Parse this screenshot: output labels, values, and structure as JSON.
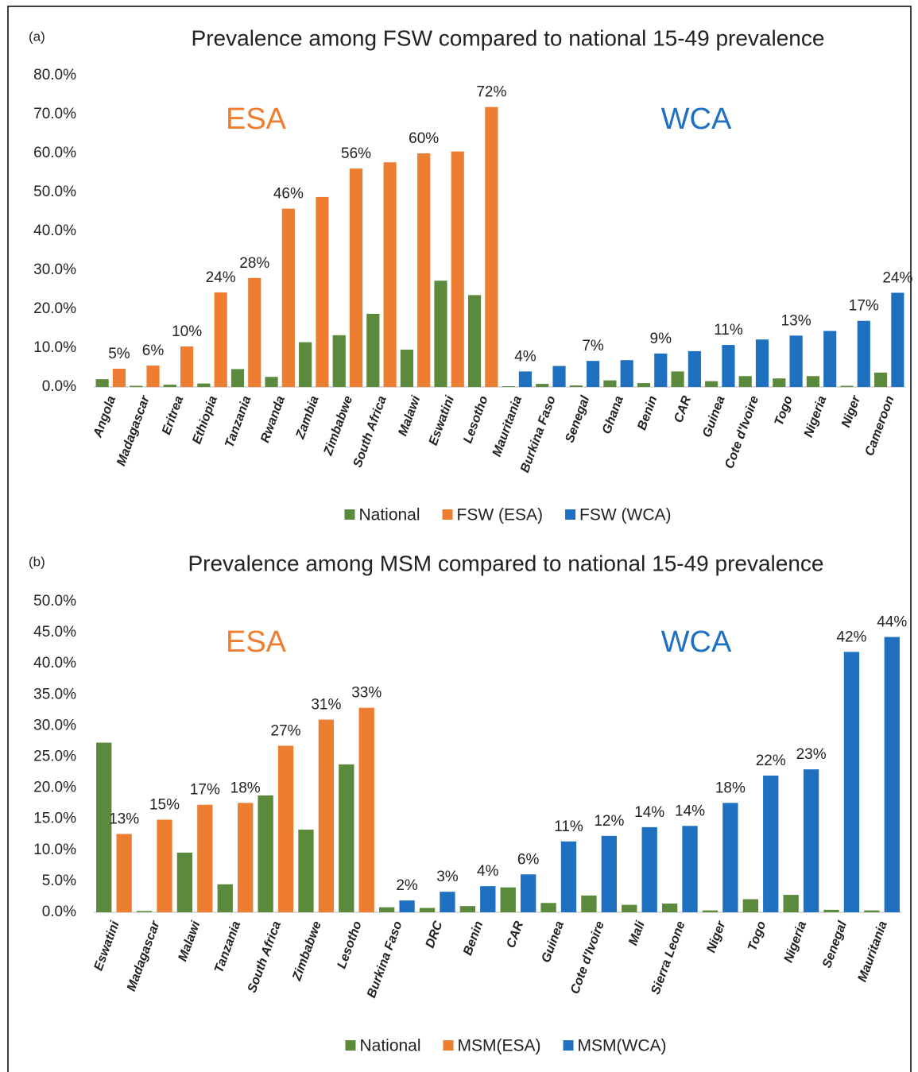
{
  "chart_data": [
    {
      "type": "bar",
      "panel_label": "(a)",
      "title": "Prevalence among FSW compared to national 15-49 prevalence",
      "annotations": [
        {
          "text": "ESA",
          "color": "#ed7d31"
        },
        {
          "text": "WCA",
          "color": "#1f70c1"
        }
      ],
      "categories": [
        "Angola",
        "Madagascar",
        "Eritrea",
        "Ethiopia",
        "Tanzania",
        "Rwanda",
        "Zambia",
        "Zimbabwe",
        "South Africa",
        "Malawi",
        "Eswatini",
        "Lesotho",
        "Mauritania",
        "Burkina Faso",
        "Senegal",
        "Ghana",
        "Benin",
        "CAR",
        "Guinea",
        "Cote d'Ivoire",
        "Togo",
        "Nigeria",
        "Niger",
        "Cameroon"
      ],
      "series": [
        {
          "name": "National",
          "color": "#5b8a3c",
          "values": [
            2.0,
            0.3,
            0.6,
            0.9,
            4.6,
            2.6,
            11.5,
            13.3,
            18.8,
            9.6,
            27.3,
            23.6,
            0.2,
            0.8,
            0.4,
            1.7,
            1.0,
            4.0,
            1.5,
            2.8,
            2.2,
            2.8,
            0.3,
            3.7
          ]
        },
        {
          "name": "FSW (ESA)",
          "color": "#ed7d31",
          "values": [
            4.7,
            5.5,
            10.4,
            24.3,
            28.0,
            45.8,
            48.8,
            56.1,
            57.7,
            60.0,
            60.5,
            71.9,
            null,
            null,
            null,
            null,
            null,
            null,
            null,
            null,
            null,
            null,
            null,
            null
          ],
          "value_labels": [
            "5%",
            "6%",
            "10%",
            "24%",
            "28%",
            "46%",
            null,
            "56%",
            null,
            "60%",
            null,
            "72%",
            null,
            null,
            null,
            null,
            null,
            null,
            null,
            null,
            null,
            null,
            null,
            null
          ]
        },
        {
          "name": "FSW (WCA)",
          "color": "#1f70c1",
          "values": [
            null,
            null,
            null,
            null,
            null,
            null,
            null,
            null,
            null,
            null,
            null,
            null,
            4.0,
            5.4,
            6.7,
            6.9,
            8.6,
            9.2,
            10.8,
            12.2,
            13.2,
            14.4,
            17.0,
            24.2
          ],
          "value_labels": [
            null,
            null,
            null,
            null,
            null,
            null,
            null,
            null,
            null,
            null,
            null,
            null,
            "4%",
            null,
            "7%",
            null,
            "9%",
            null,
            "11%",
            null,
            "13%",
            null,
            "17%",
            "24%"
          ]
        }
      ],
      "ylim": [
        0,
        80
      ],
      "yticks": [
        {
          "value": 0,
          "label": "0.0%"
        },
        {
          "value": 10,
          "label": "10.0%"
        },
        {
          "value": 20,
          "label": "20.0%"
        },
        {
          "value": 30,
          "label": "30.0%"
        },
        {
          "value": 40,
          "label": "40.0%"
        },
        {
          "value": 50,
          "label": "50.0%"
        },
        {
          "value": 60,
          "label": "60.0%"
        },
        {
          "value": 70,
          "label": "70.0%"
        },
        {
          "value": 80,
          "label": "80.0%"
        }
      ],
      "grid": false,
      "legend": "bottom"
    },
    {
      "type": "bar",
      "panel_label": "(b)",
      "title": "Prevalence among MSM compared to national 15-49 prevalence",
      "annotations": [
        {
          "text": "ESA",
          "color": "#ed7d31"
        },
        {
          "text": "WCA",
          "color": "#1f70c1"
        }
      ],
      "categories": [
        "Eswatini",
        "Madagascar",
        "Malawi",
        "Tanzania",
        "South Africa",
        "Zimbabwe",
        "Lesotho",
        "Burkina Faso",
        "DRC",
        "Benin",
        "CAR",
        "Guinea",
        "Cote d'Ivoire",
        "Mali",
        "Sierra Leone",
        "Niger",
        "Togo",
        "Nigeria",
        "Senegal",
        "Mauritania"
      ],
      "series": [
        {
          "name": "National",
          "color": "#5b8a3c",
          "values": [
            27.3,
            0.2,
            9.6,
            4.5,
            18.8,
            13.3,
            23.8,
            0.8,
            0.7,
            1.0,
            4.0,
            1.5,
            2.7,
            1.2,
            1.4,
            0.3,
            2.1,
            2.8,
            0.4,
            0.3
          ]
        },
        {
          "name": "MSM(ESA)",
          "color": "#ed7d31",
          "values": [
            12.6,
            14.9,
            17.3,
            17.6,
            26.8,
            31.0,
            32.9,
            null,
            null,
            null,
            null,
            null,
            null,
            null,
            null,
            null,
            null,
            null,
            null,
            null
          ],
          "value_labels": [
            "13%",
            "15%",
            "17%",
            "18%",
            "27%",
            "31%",
            "33%",
            null,
            null,
            null,
            null,
            null,
            null,
            null,
            null,
            null,
            null,
            null,
            null,
            null
          ]
        },
        {
          "name": "MSM(WCA)",
          "color": "#1f70c1",
          "values": [
            null,
            null,
            null,
            null,
            null,
            null,
            null,
            1.9,
            3.3,
            4.2,
            6.1,
            11.4,
            12.3,
            13.7,
            13.9,
            17.6,
            22.0,
            23.0,
            41.9,
            44.3
          ],
          "value_labels": [
            null,
            null,
            null,
            null,
            null,
            null,
            null,
            "2%",
            "3%",
            "4%",
            "6%",
            "11%",
            "12%",
            "14%",
            "14%",
            "18%",
            "22%",
            "23%",
            "42%",
            "44%"
          ]
        }
      ],
      "ylim": [
        0,
        50
      ],
      "yticks": [
        {
          "value": 0,
          "label": "0.0%"
        },
        {
          "value": 5,
          "label": "5.0%"
        },
        {
          "value": 10,
          "label": "10.0%"
        },
        {
          "value": 15,
          "label": "15.0%"
        },
        {
          "value": 20,
          "label": "20.0%"
        },
        {
          "value": 25,
          "label": "25.0%"
        },
        {
          "value": 30,
          "label": "30.0%"
        },
        {
          "value": 35,
          "label": "35.0%"
        },
        {
          "value": 40,
          "label": "40.0%"
        },
        {
          "value": 45,
          "label": "45.0%"
        },
        {
          "value": 50,
          "label": "50.0%"
        }
      ],
      "grid": false,
      "legend": "bottom"
    }
  ]
}
